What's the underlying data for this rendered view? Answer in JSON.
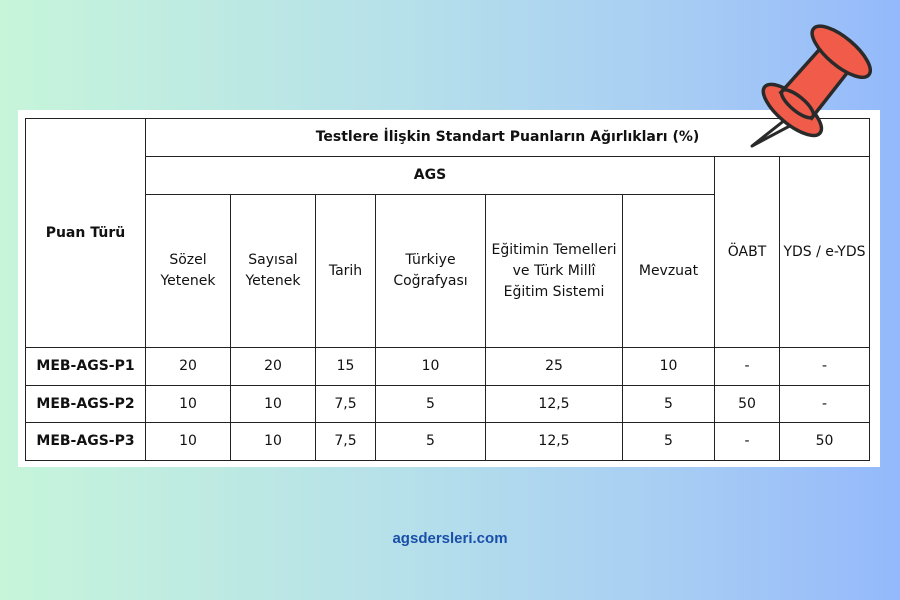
{
  "table": {
    "row_header": "Puan Türü",
    "title": "Testlere İlişkin Standart Puanların Ağırlıkları (%)",
    "group": "AGS",
    "columns": [
      "Sözel Yetenek",
      "Sayısal Yetenek",
      "Tarih",
      "Türkiye Coğrafyası",
      "Eğitimin Temelleri ve Türk Millî Eğitim Sistemi",
      "Mevzuat",
      "ÖABT",
      "YDS / e-YDS"
    ],
    "rows": [
      {
        "name": "MEB-AGS-P1",
        "values": [
          "20",
          "20",
          "15",
          "10",
          "25",
          "10",
          "-",
          "-"
        ]
      },
      {
        "name": "MEB-AGS-P2",
        "values": [
          "10",
          "10",
          "7,5",
          "5",
          "12,5",
          "5",
          "50",
          "-"
        ]
      },
      {
        "name": "MEB-AGS-P3",
        "values": [
          "10",
          "10",
          "7,5",
          "5",
          "12,5",
          "5",
          "-",
          "50"
        ]
      }
    ]
  },
  "footer": "agsdersleri.com",
  "colors": {
    "pin": "#f05b4a",
    "footer": "#1a4fa8"
  }
}
